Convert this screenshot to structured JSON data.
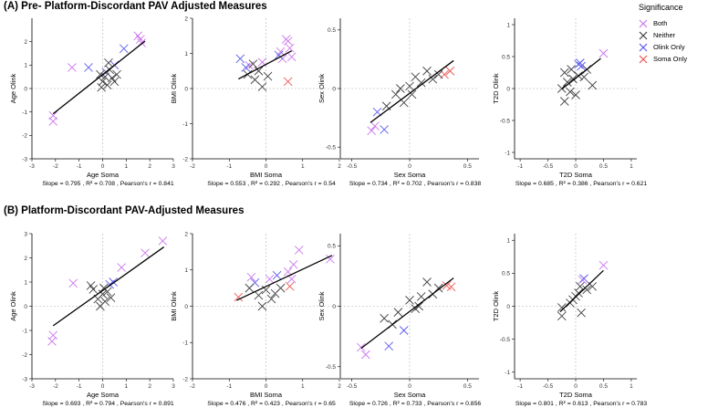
{
  "section_a": {
    "title": "(A) Pre- Platform-Discordant PAV Adjusted Measures"
  },
  "section_b": {
    "title": "(B) Platform-Discordant PAV-Adjusted Measures"
  },
  "legend": {
    "title": "Significance",
    "items": [
      {
        "label": "Both",
        "color": "#cc77ee"
      },
      {
        "label": "Neither",
        "color": "#444444"
      },
      {
        "label": "Olink Only",
        "color": "#5b5bee"
      },
      {
        "label": "Soma Only",
        "color": "#ee5555"
      }
    ]
  },
  "chart_data": [
    {
      "type": "scatter",
      "section": "A",
      "xlabel": "Age Soma",
      "ylabel": "Age Olink",
      "stats": "Slope = 0.795 , R² = 0.708 , Pearson's r = 0.841",
      "xlim": [
        -3,
        3
      ],
      "ylim": [
        -3,
        3
      ],
      "xticks": [
        -3,
        -2,
        -1,
        0,
        1,
        2,
        3
      ],
      "yticks": [
        -3,
        -2,
        -1,
        0,
        1,
        2
      ],
      "fit": {
        "slope": 0.795,
        "x": [
          -2.1,
          1.8
        ]
      },
      "points": [
        {
          "x": -2.1,
          "y": -1.4,
          "g": "Both"
        },
        {
          "x": -2.1,
          "y": -1.15,
          "g": "Both"
        },
        {
          "x": -1.3,
          "y": 0.9,
          "g": "Both"
        },
        {
          "x": 1.5,
          "y": 2.25,
          "g": "Both"
        },
        {
          "x": 1.65,
          "y": 1.95,
          "g": "Both"
        },
        {
          "x": 1.6,
          "y": 2.1,
          "g": "Both"
        },
        {
          "x": -0.6,
          "y": 0.9,
          "g": "Olink Only"
        },
        {
          "x": 0.9,
          "y": 1.7,
          "g": "Olink Only"
        },
        {
          "x": 0.5,
          "y": 1.0,
          "g": "Olink Only"
        },
        {
          "x": 0.15,
          "y": 0.7,
          "g": "Olink Only"
        },
        {
          "x": 0.0,
          "y": 0.3,
          "g": "Neither"
        },
        {
          "x": 0.1,
          "y": 0.5,
          "g": "Neither"
        },
        {
          "x": 0.2,
          "y": 0.15,
          "g": "Neither"
        },
        {
          "x": 0.3,
          "y": 0.8,
          "g": "Neither"
        },
        {
          "x": 0.4,
          "y": 0.45,
          "g": "Neither"
        },
        {
          "x": -0.1,
          "y": 0.6,
          "g": "Neither"
        },
        {
          "x": 0.5,
          "y": 0.3,
          "g": "Neither"
        },
        {
          "x": 0.25,
          "y": 1.1,
          "g": "Neither"
        },
        {
          "x": -0.05,
          "y": 0.05,
          "g": "Neither"
        },
        {
          "x": 0.6,
          "y": 0.6,
          "g": "Neither"
        }
      ]
    },
    {
      "type": "scatter",
      "section": "A",
      "xlabel": "BMI Soma",
      "ylabel": "BMI Olink",
      "stats": "Slope = 0.553 , R² = 0.292 , Pearson's r = 0.54",
      "xlim": [
        -2,
        2
      ],
      "ylim": [
        -2,
        2
      ],
      "xticks": [
        -2,
        -1,
        0,
        1,
        2
      ],
      "yticks": [
        -2,
        -1,
        0,
        1,
        2
      ],
      "fit": {
        "slope": 0.553,
        "x": [
          -0.75,
          0.7
        ]
      },
      "points": [
        {
          "x": 0.6,
          "y": 1.35,
          "g": "Both"
        },
        {
          "x": 0.65,
          "y": 1.15,
          "g": "Both"
        },
        {
          "x": 0.7,
          "y": 0.9,
          "g": "Both"
        },
        {
          "x": 0.45,
          "y": 0.85,
          "g": "Both"
        },
        {
          "x": -0.45,
          "y": 0.65,
          "g": "Both"
        },
        {
          "x": -0.1,
          "y": 0.75,
          "g": "Both"
        },
        {
          "x": 0.4,
          "y": 1.05,
          "g": "Both"
        },
        {
          "x": 0.55,
          "y": 1.4,
          "g": "Both"
        },
        {
          "x": -0.7,
          "y": 0.85,
          "g": "Olink Only"
        },
        {
          "x": -0.55,
          "y": 0.6,
          "g": "Olink Only"
        },
        {
          "x": 0.35,
          "y": 0.95,
          "g": "Olink Only"
        },
        {
          "x": 0.6,
          "y": 0.2,
          "g": "Soma Only"
        },
        {
          "x": -0.5,
          "y": 0.4,
          "g": "Neither"
        },
        {
          "x": -0.3,
          "y": 0.25,
          "g": "Neither"
        },
        {
          "x": -0.2,
          "y": 0.5,
          "g": "Neither"
        },
        {
          "x": -0.1,
          "y": 0.05,
          "g": "Neither"
        },
        {
          "x": -0.35,
          "y": 0.7,
          "g": "Neither"
        },
        {
          "x": 0.05,
          "y": 0.35,
          "g": "Neither"
        }
      ]
    },
    {
      "type": "scatter",
      "section": "A",
      "xlabel": "Sex Soma",
      "ylabel": "Sex Olink",
      "stats": "Slope = 0.734 , R² = 0.702 , Pearson's r = 0.838",
      "xlim": [
        -0.6,
        0.6
      ],
      "ylim": [
        -0.6,
        0.6
      ],
      "xticks": [
        -0.5,
        0,
        0.5
      ],
      "yticks": [
        -0.5,
        0,
        0.5
      ],
      "fit": {
        "slope": 0.734,
        "x": [
          -0.34,
          0.38
        ]
      },
      "points": [
        {
          "x": -0.33,
          "y": -0.36,
          "g": "Both"
        },
        {
          "x": -0.3,
          "y": -0.32,
          "g": "Both"
        },
        {
          "x": -0.22,
          "y": -0.35,
          "g": "Olink Only"
        },
        {
          "x": -0.28,
          "y": -0.2,
          "g": "Olink Only"
        },
        {
          "x": 0.3,
          "y": 0.12,
          "g": "Soma Only"
        },
        {
          "x": 0.35,
          "y": 0.15,
          "g": "Soma Only"
        },
        {
          "x": -0.12,
          "y": -0.05,
          "g": "Neither"
        },
        {
          "x": -0.05,
          "y": -0.12,
          "g": "Neither"
        },
        {
          "x": 0.0,
          "y": 0.02,
          "g": "Neither"
        },
        {
          "x": 0.05,
          "y": 0.1,
          "g": "Neither"
        },
        {
          "x": 0.1,
          "y": 0.05,
          "g": "Neither"
        },
        {
          "x": 0.15,
          "y": 0.15,
          "g": "Neither"
        },
        {
          "x": 0.2,
          "y": 0.08,
          "g": "Neither"
        },
        {
          "x": -0.2,
          "y": -0.15,
          "g": "Neither"
        },
        {
          "x": 0.02,
          "y": -0.05,
          "g": "Neither"
        },
        {
          "x": 0.25,
          "y": 0.12,
          "g": "Neither"
        },
        {
          "x": -0.08,
          "y": 0.0,
          "g": "Neither"
        }
      ]
    },
    {
      "type": "scatter",
      "section": "A",
      "xlabel": "T2D Soma",
      "ylabel": "T2D Olink",
      "stats": "Slope = 0.685 , R² = 0.386 , Pearson's r = 0.621",
      "xlim": [
        -1.1,
        1.1
      ],
      "ylim": [
        -1.1,
        1.1
      ],
      "xticks": [
        -1,
        -0.5,
        0,
        0.5,
        1
      ],
      "yticks": [
        -1,
        -0.5,
        0,
        0.5,
        1
      ],
      "fit": {
        "slope": 0.685,
        "x": [
          -0.25,
          0.45
        ]
      },
      "points": [
        {
          "x": 0.5,
          "y": 0.55,
          "g": "Both"
        },
        {
          "x": 0.05,
          "y": 0.38,
          "g": "Olink Only"
        },
        {
          "x": 0.1,
          "y": 0.35,
          "g": "Olink Only"
        },
        {
          "x": 0.08,
          "y": 0.4,
          "g": "Olink Only"
        },
        {
          "x": -0.2,
          "y": 0.25,
          "g": "Neither"
        },
        {
          "x": -0.15,
          "y": 0.1,
          "g": "Neither"
        },
        {
          "x": -0.1,
          "y": -0.05,
          "g": "Neither"
        },
        {
          "x": -0.25,
          "y": 0.0,
          "g": "Neither"
        },
        {
          "x": -0.05,
          "y": 0.15,
          "g": "Neither"
        },
        {
          "x": 0.0,
          "y": -0.1,
          "g": "Neither"
        },
        {
          "x": 0.05,
          "y": 0.2,
          "g": "Neither"
        },
        {
          "x": 0.15,
          "y": 0.18,
          "g": "Neither"
        },
        {
          "x": -0.2,
          "y": -0.2,
          "g": "Neither"
        },
        {
          "x": 0.3,
          "y": 0.05,
          "g": "Neither"
        },
        {
          "x": 0.2,
          "y": 0.3,
          "g": "Neither"
        },
        {
          "x": -0.08,
          "y": 0.3,
          "g": "Neither"
        }
      ]
    },
    {
      "type": "scatter",
      "section": "B",
      "xlabel": "Age Soma",
      "ylabel": "Age Olink",
      "stats": "Slope = 0.693 , R² = 0.794 , Pearson's r = 0.891",
      "xlim": [
        -3,
        3
      ],
      "ylim": [
        -3,
        3
      ],
      "xticks": [
        -3,
        -2,
        -1,
        0,
        1,
        2,
        3
      ],
      "yticks": [
        -3,
        -2,
        -1,
        0,
        1,
        2,
        3
      ],
      "fit": {
        "slope": 0.693,
        "x": [
          -2.1,
          2.6
        ]
      },
      "points": [
        {
          "x": -2.15,
          "y": -1.45,
          "g": "Both"
        },
        {
          "x": -2.1,
          "y": -1.2,
          "g": "Both"
        },
        {
          "x": -1.25,
          "y": 0.95,
          "g": "Both"
        },
        {
          "x": 0.8,
          "y": 1.6,
          "g": "Both"
        },
        {
          "x": 1.8,
          "y": 2.2,
          "g": "Both"
        },
        {
          "x": 2.55,
          "y": 2.7,
          "g": "Both"
        },
        {
          "x": 0.3,
          "y": 0.9,
          "g": "Olink Only"
        },
        {
          "x": 0.45,
          "y": 1.0,
          "g": "Olink Only"
        },
        {
          "x": -0.4,
          "y": 0.7,
          "g": "Neither"
        },
        {
          "x": -0.2,
          "y": 0.3,
          "g": "Neither"
        },
        {
          "x": 0.0,
          "y": 0.5,
          "g": "Neither"
        },
        {
          "x": 0.1,
          "y": 0.2,
          "g": "Neither"
        },
        {
          "x": 0.2,
          "y": 0.6,
          "g": "Neither"
        },
        {
          "x": -0.5,
          "y": 0.85,
          "g": "Neither"
        },
        {
          "x": 0.35,
          "y": 0.35,
          "g": "Neither"
        },
        {
          "x": -0.1,
          "y": 0.0,
          "g": "Neither"
        },
        {
          "x": 0.05,
          "y": 0.75,
          "g": "Neither"
        }
      ]
    },
    {
      "type": "scatter",
      "section": "B",
      "xlabel": "BMI Soma",
      "ylabel": "BMI Olink",
      "stats": "Slope = 0.476 , R² = 0.423 , Pearson's r = 0.65",
      "xlim": [
        -2,
        2
      ],
      "ylim": [
        -2,
        2
      ],
      "xticks": [
        -2,
        -1,
        0,
        1,
        2
      ],
      "yticks": [
        -2,
        -1,
        0,
        1,
        2
      ],
      "fit": {
        "slope": 0.476,
        "x": [
          -0.8,
          1.8
        ]
      },
      "points": [
        {
          "x": 0.9,
          "y": 1.55,
          "g": "Both"
        },
        {
          "x": 0.75,
          "y": 1.15,
          "g": "Both"
        },
        {
          "x": 0.6,
          "y": 0.95,
          "g": "Both"
        },
        {
          "x": 0.7,
          "y": 0.75,
          "g": "Both"
        },
        {
          "x": -0.4,
          "y": 0.8,
          "g": "Both"
        },
        {
          "x": 0.1,
          "y": 0.75,
          "g": "Both"
        },
        {
          "x": 1.75,
          "y": 1.3,
          "g": "Both"
        },
        {
          "x": -0.3,
          "y": 0.65,
          "g": "Olink Only"
        },
        {
          "x": 0.3,
          "y": 0.85,
          "g": "Olink Only"
        },
        {
          "x": -0.75,
          "y": 0.25,
          "g": "Soma Only"
        },
        {
          "x": 0.65,
          "y": 0.55,
          "g": "Soma Only"
        },
        {
          "x": -0.2,
          "y": 0.3,
          "g": "Neither"
        },
        {
          "x": -0.1,
          "y": 0.0,
          "g": "Neither"
        },
        {
          "x": 0.0,
          "y": 0.45,
          "g": "Neither"
        },
        {
          "x": 0.15,
          "y": 0.2,
          "g": "Neither"
        },
        {
          "x": 0.4,
          "y": 0.5,
          "g": "Neither"
        },
        {
          "x": -0.45,
          "y": 0.5,
          "g": "Neither"
        },
        {
          "x": 0.25,
          "y": 0.35,
          "g": "Neither"
        }
      ]
    },
    {
      "type": "scatter",
      "section": "B",
      "xlabel": "Sex Soma",
      "ylabel": "Sex Olink",
      "stats": "Slope = 0.726 , R² = 0.733 , Pearson's r = 0.856",
      "xlim": [
        -0.6,
        0.6
      ],
      "ylim": [
        -0.6,
        0.6
      ],
      "xticks": [
        -0.5,
        0,
        0.5
      ],
      "yticks": [
        -0.5,
        0,
        0.5
      ],
      "fit": {
        "slope": 0.726,
        "x": [
          -0.42,
          0.38
        ]
      },
      "points": [
        {
          "x": -0.42,
          "y": -0.34,
          "g": "Both"
        },
        {
          "x": -0.38,
          "y": -0.4,
          "g": "Both"
        },
        {
          "x": -0.18,
          "y": -0.33,
          "g": "Olink Only"
        },
        {
          "x": -0.05,
          "y": -0.2,
          "g": "Olink Only"
        },
        {
          "x": 0.32,
          "y": 0.17,
          "g": "Soma Only"
        },
        {
          "x": 0.36,
          "y": 0.16,
          "g": "Soma Only"
        },
        {
          "x": -0.22,
          "y": -0.1,
          "g": "Neither"
        },
        {
          "x": -0.1,
          "y": -0.05,
          "g": "Neither"
        },
        {
          "x": 0.0,
          "y": 0.05,
          "g": "Neither"
        },
        {
          "x": 0.05,
          "y": -0.02,
          "g": "Neither"
        },
        {
          "x": 0.1,
          "y": 0.08,
          "g": "Neither"
        },
        {
          "x": 0.15,
          "y": 0.2,
          "g": "Neither"
        },
        {
          "x": 0.2,
          "y": 0.1,
          "g": "Neither"
        },
        {
          "x": -0.15,
          "y": -0.15,
          "g": "Neither"
        },
        {
          "x": 0.25,
          "y": 0.15,
          "g": "Neither"
        },
        {
          "x": 0.08,
          "y": 0.0,
          "g": "Neither"
        }
      ]
    },
    {
      "type": "scatter",
      "section": "B",
      "xlabel": "T2D Soma",
      "ylabel": "T2D Olink",
      "stats": "Slope = 0.801 , R² = 0.613 , Pearson's r = 0.783",
      "xlim": [
        -1.1,
        1.1
      ],
      "ylim": [
        -1.1,
        1.1
      ],
      "xticks": [
        -1,
        -0.5,
        0,
        0.5,
        1
      ],
      "yticks": [
        -1,
        -0.5,
        0,
        0.5,
        1
      ],
      "fit": {
        "slope": 0.801,
        "x": [
          -0.28,
          0.5
        ]
      },
      "points": [
        {
          "x": 0.5,
          "y": 0.62,
          "g": "Both"
        },
        {
          "x": 0.12,
          "y": 0.4,
          "g": "Both"
        },
        {
          "x": 0.15,
          "y": 0.42,
          "g": "Olink Only"
        },
        {
          "x": -0.25,
          "y": -0.02,
          "g": "Neither"
        },
        {
          "x": -0.25,
          "y": -0.15,
          "g": "Neither"
        },
        {
          "x": -0.1,
          "y": 0.05,
          "g": "Neither"
        },
        {
          "x": 0.0,
          "y": 0.15,
          "g": "Neither"
        },
        {
          "x": 0.05,
          "y": 0.2,
          "g": "Neither"
        },
        {
          "x": 0.1,
          "y": -0.1,
          "g": "Neither"
        },
        {
          "x": 0.2,
          "y": 0.25,
          "g": "Neither"
        },
        {
          "x": 0.3,
          "y": 0.3,
          "g": "Neither"
        },
        {
          "x": -0.05,
          "y": 0.1,
          "g": "Neither"
        },
        {
          "x": 0.08,
          "y": 0.3,
          "g": "Neither"
        }
      ]
    }
  ]
}
